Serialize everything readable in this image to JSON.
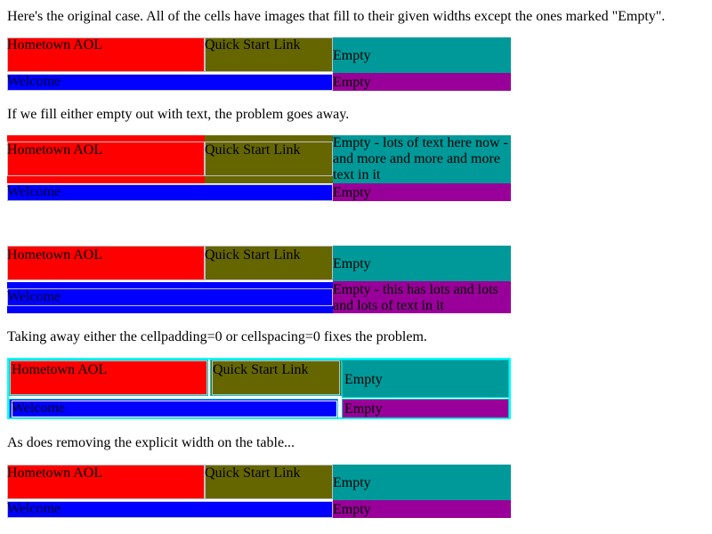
{
  "paragraphs": {
    "p1": "Here's the original case. All of the cells have images that fill to their given widths except the ones marked \"Empty\".",
    "p2": "If we fill either empty out with text, the problem goes away.",
    "p3": "Taking away either the cellpadding=0 or cellspacing=0 fixes the problem.",
    "p4": "As does removing the explicit width on the table..."
  },
  "cells": {
    "hometown": "Hometown AOL",
    "quickstart": "Quick Start Link",
    "empty": "Empty",
    "welcome": "Welcome",
    "empty_long_1": "Empty - lots of text here now - and more and more and more text in it",
    "empty_long_2": "Empty - this has lots and lots and lots of text in it"
  },
  "colors": {
    "red": "#ff0000",
    "olive": "#666600",
    "teal": "#009999",
    "blue": "#0000ff",
    "purple": "#990099",
    "cyan_border": "#00ffff"
  }
}
